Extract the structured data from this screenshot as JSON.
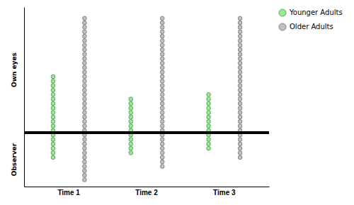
{
  "chart_data": {
    "type": "dot",
    "categories": [
      "Time 1",
      "Time 2",
      "Time 3"
    ],
    "series": [
      {
        "name": "Younger Adults",
        "color": "#90EE90",
        "values": [
          13,
          8,
          9
        ],
        "below": [
          6,
          5,
          4
        ]
      },
      {
        "name": "Older Adults",
        "color": "#c0c0c0",
        "values": [
          26,
          26,
          26
        ],
        "below": [
          11,
          8,
          6
        ]
      }
    ],
    "annotations": [
      "Own eyes",
      "Observer"
    ],
    "ylim": [
      -12,
      28
    ],
    "tick_labels": "x",
    "grid": false,
    "legend": "upper right"
  }
}
